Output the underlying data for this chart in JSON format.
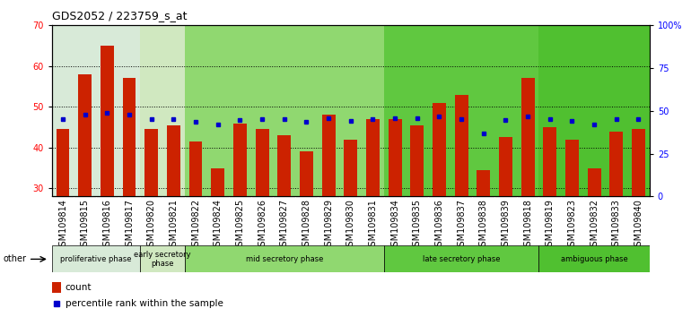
{
  "title": "GDS2052 / 223759_s_at",
  "samples": [
    "GSM109814",
    "GSM109815",
    "GSM109816",
    "GSM109817",
    "GSM109820",
    "GSM109821",
    "GSM109822",
    "GSM109824",
    "GSM109825",
    "GSM109826",
    "GSM109827",
    "GSM109828",
    "GSM109829",
    "GSM109830",
    "GSM109831",
    "GSM109834",
    "GSM109835",
    "GSM109836",
    "GSM109837",
    "GSM109838",
    "GSM109839",
    "GSM109818",
    "GSM109819",
    "GSM109823",
    "GSM109832",
    "GSM109833",
    "GSM109840"
  ],
  "count_values": [
    44.5,
    58.0,
    65.0,
    57.0,
    44.5,
    45.5,
    41.5,
    35.0,
    46.0,
    44.5,
    43.0,
    39.0,
    48.0,
    42.0,
    47.0,
    47.0,
    45.5,
    51.0,
    53.0,
    34.5,
    42.5,
    57.0,
    45.0,
    42.0,
    35.0,
    44.0,
    44.5
  ],
  "percentile_values": [
    45.0,
    48.0,
    49.0,
    48.0,
    45.5,
    45.5,
    43.5,
    42.0,
    44.5,
    45.0,
    45.0,
    43.5,
    46.0,
    44.0,
    45.5,
    46.0,
    46.0,
    47.0,
    45.0,
    37.0,
    44.5,
    47.0,
    45.5,
    44.0,
    42.0,
    45.0,
    45.5
  ],
  "phases": [
    {
      "label": "proliferative phase",
      "start": 0,
      "end": 4,
      "color": "#d8ead8"
    },
    {
      "label": "early secretory\nphase",
      "start": 4,
      "end": 6,
      "color": "#d0e8c0"
    },
    {
      "label": "mid secretory phase",
      "start": 6,
      "end": 15,
      "color": "#90d870"
    },
    {
      "label": "late secretory phase",
      "start": 15,
      "end": 22,
      "color": "#60c840"
    },
    {
      "label": "ambiguous phase",
      "start": 22,
      "end": 27,
      "color": "#50c030"
    }
  ],
  "bar_color": "#cc2200",
  "percentile_color": "#0000cc",
  "ylim_left": [
    28,
    70
  ],
  "ylim_right": [
    0,
    100
  ],
  "yticks_left": [
    30,
    40,
    50,
    60,
    70
  ],
  "yticks_right": [
    0,
    25,
    50,
    75,
    100
  ],
  "ytick_labels_right": [
    "0",
    "25",
    "50",
    "75",
    "100%"
  ],
  "bar_width": 0.6,
  "tick_fontsize": 7,
  "title_fontsize": 9,
  "other_label": "other",
  "xtick_bg": "#cccccc"
}
